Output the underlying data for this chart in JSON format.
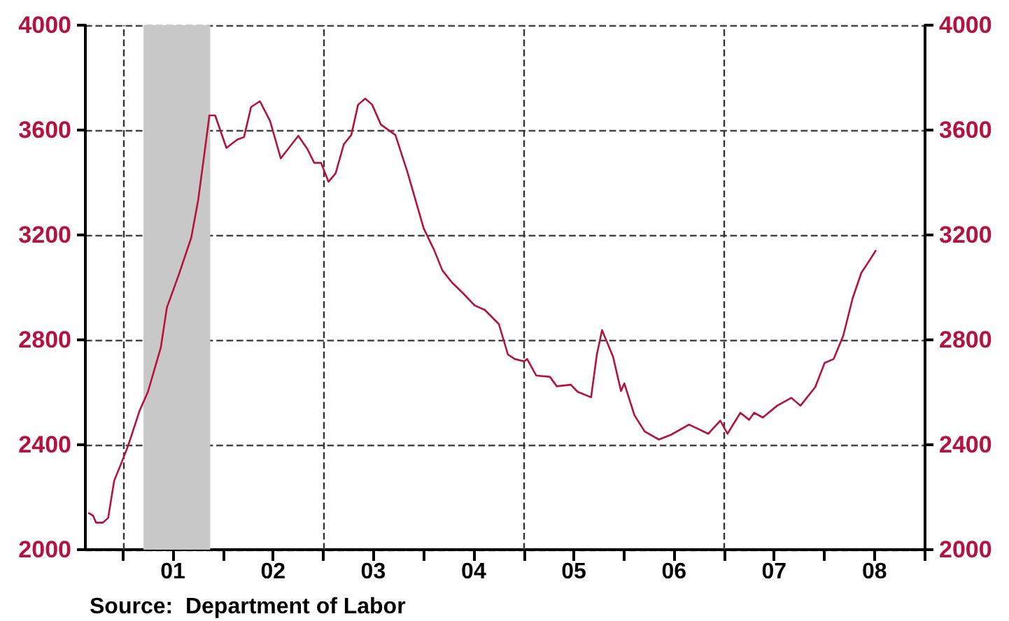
{
  "chart_data": {
    "type": "line",
    "x": [
      "2000-08-29",
      "2000-09-13",
      "2000-09-24",
      "2000-10-19",
      "2000-11-07",
      "2000-11-29",
      "2000-12-27",
      "2001-01-19",
      "2001-03-02",
      "2001-04-01",
      "2001-05-18",
      "2001-06-09",
      "2001-07-22",
      "2001-09-06",
      "2001-10-01",
      "2001-10-26",
      "2001-11-11",
      "2001-12-02",
      "2002-01-12",
      "2002-02-21",
      "2002-03-17",
      "2002-04-12",
      "2002-05-14",
      "2002-06-20",
      "2002-07-29",
      "2002-10-01",
      "2002-11-03",
      "2002-11-28",
      "2002-12-23",
      "2003-01-19",
      "2003-02-14",
      "2003-03-16",
      "2003-04-12",
      "2003-05-07",
      "2003-06-02",
      "2003-06-27",
      "2003-07-29",
      "2003-09-20",
      "2003-11-03",
      "2004-01-01",
      "2004-02-07",
      "2004-03-09",
      "2004-04-12",
      "2004-05-25",
      "2004-07-05",
      "2004-08-11",
      "2004-10-01",
      "2004-11-03",
      "2004-11-28",
      "2005-01-01",
      "2005-01-12",
      "2005-02-14",
      "2005-04-05",
      "2005-04-30",
      "2005-06-20",
      "2005-07-15",
      "2005-09-02",
      "2005-09-23",
      "2005-10-12",
      "2005-11-21",
      "2005-12-20",
      "2006-01-01",
      "2006-02-07",
      "2006-03-16",
      "2006-05-07",
      "2006-06-20",
      "2006-08-25",
      "2006-11-03",
      "2006-12-17",
      "2007-01-12",
      "2007-02-28",
      "2007-04-01",
      "2007-04-19",
      "2007-05-21",
      "2007-07-12",
      "2007-09-02",
      "2007-10-05",
      "2007-11-28",
      "2008-01-01",
      "2008-02-03",
      "2008-03-09",
      "2008-04-12",
      "2008-05-14",
      "2008-06-09",
      "2008-07-05"
    ],
    "series": [
      {
        "color": "#b5123f",
        "values": [
          2139,
          2130,
          2103,
          2103,
          2121,
          2263,
          2335,
          2397,
          2531,
          2602,
          2771,
          2923,
          3047,
          3190,
          3332,
          3528,
          3656,
          3656,
          3532,
          3564,
          3573,
          3688,
          3710,
          3635,
          3492,
          3578,
          3528,
          3475,
          3475,
          3403,
          3435,
          3546,
          3581,
          3697,
          3720,
          3697,
          3621,
          3581,
          3439,
          3225,
          3145,
          3065,
          3020,
          2976,
          2931,
          2914,
          2860,
          2744,
          2727,
          2718,
          2727,
          2664,
          2659,
          2623,
          2629,
          2602,
          2581,
          2744,
          2837,
          2736,
          2605,
          2634,
          2513,
          2451,
          2420,
          2438,
          2477,
          2442,
          2492,
          2442,
          2522,
          2495,
          2522,
          2504,
          2549,
          2579,
          2549,
          2620,
          2712,
          2727,
          2816,
          2958,
          3056,
          3097,
          3140
        ]
      }
    ],
    "xlim": [
      "2000-08-16",
      "2009-01-01"
    ],
    "xticks": [
      {
        "value": "2001-01-01",
        "label": null
      },
      {
        "value": "2001-07-01",
        "label": "01"
      },
      {
        "value": "2002-01-01",
        "label": null
      },
      {
        "value": "2002-07-01",
        "label": "02"
      },
      {
        "value": "2003-01-01",
        "label": null
      },
      {
        "value": "2003-07-01",
        "label": "03"
      },
      {
        "value": "2004-01-01",
        "label": null
      },
      {
        "value": "2004-07-01",
        "label": "04"
      },
      {
        "value": "2005-01-01",
        "label": null
      },
      {
        "value": "2005-07-01",
        "label": "05"
      },
      {
        "value": "2006-01-01",
        "label": null
      },
      {
        "value": "2006-07-01",
        "label": "06"
      },
      {
        "value": "2007-01-01",
        "label": null
      },
      {
        "value": "2007-07-01",
        "label": "07"
      },
      {
        "value": "2008-01-01",
        "label": null
      },
      {
        "value": "2008-07-01",
        "label": "08"
      },
      {
        "value": "2009-01-01",
        "label": null
      }
    ],
    "ylim": [
      2000,
      4000
    ],
    "yticks": [
      2000,
      2400,
      2800,
      3200,
      3600,
      4000
    ],
    "y2lim": [
      2000,
      4000
    ],
    "y2ticks": [
      2000,
      2400,
      2800,
      3200,
      3600,
      4000
    ],
    "grid": "y",
    "marker": "none",
    "line_style": "solid",
    "ref_lines": [
      {
        "axis": "x",
        "value": "2001-01-01",
        "line_style": "dashed",
        "color": "#333333"
      },
      {
        "axis": "x",
        "value": "2003-01-01",
        "line_style": "dashed",
        "color": "#333333"
      },
      {
        "axis": "x",
        "value": "2005-01-01",
        "line_style": "dashed",
        "color": "#333333"
      },
      {
        "axis": "x",
        "value": "2007-01-01",
        "line_style": "dashed",
        "color": "#333333"
      }
    ],
    "bands": [
      {
        "axis": "x",
        "from": "2001-03-16",
        "to": "2001-11-14",
        "color": "#c8c8c8"
      }
    ],
    "annotations": [
      "Source:  Department of Labor"
    ]
  }
}
